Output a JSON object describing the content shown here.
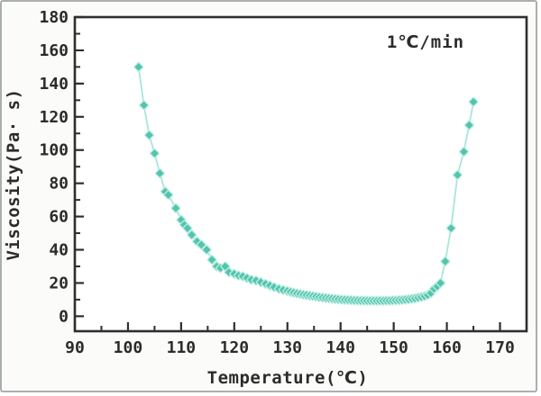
{
  "figure": {
    "colors": {
      "paper": "#fbfbf9",
      "ink": "#2b2b2b",
      "frame": "#2e2e2e",
      "marker": "#53c4ad",
      "marker_halo": "#bdeee3",
      "line": "#a9e6d9"
    }
  },
  "chart_data": {
    "type": "line",
    "title": "",
    "xlabel": "Temperature(℃)",
    "ylabel": "Viscosity(Pa· s)",
    "annotation": "1℃/min",
    "xlim": [
      90,
      175
    ],
    "ylim": [
      -9,
      180
    ],
    "xticks": [
      90,
      100,
      110,
      120,
      130,
      140,
      150,
      160,
      170
    ],
    "yticks": [
      0,
      20,
      40,
      60,
      80,
      100,
      120,
      140,
      160,
      180
    ],
    "x_minor_ticks": [
      95,
      105,
      115,
      125,
      135,
      145,
      155,
      165
    ],
    "y_minor_ticks": [
      10,
      30,
      50,
      70,
      90,
      110,
      130,
      150,
      170
    ],
    "grid": false,
    "legend": "none",
    "marker_shape": "diamond",
    "series": [
      {
        "name": "viscosity-vs-temperature",
        "points": [
          [
            102,
            150
          ],
          [
            103,
            127
          ],
          [
            104,
            109
          ],
          [
            105,
            98
          ],
          [
            106,
            86
          ],
          [
            107,
            75
          ],
          [
            107.6,
            73
          ],
          [
            109,
            65
          ],
          [
            110,
            58
          ],
          [
            110.6,
            55
          ],
          [
            111.2,
            53
          ],
          [
            112,
            49
          ],
          [
            113,
            45
          ],
          [
            113.8,
            43
          ],
          [
            114.8,
            40
          ],
          [
            115.8,
            34
          ],
          [
            116.7,
            30
          ],
          [
            117.4,
            29
          ],
          [
            118.3,
            30
          ],
          [
            119,
            26.5
          ],
          [
            120,
            25.5
          ],
          [
            120.8,
            24.5
          ],
          [
            121.6,
            24
          ],
          [
            122.4,
            23
          ],
          [
            123.2,
            22
          ],
          [
            124.1,
            21.5
          ],
          [
            125,
            20.5
          ],
          [
            125.9,
            19.5
          ],
          [
            126.7,
            18.5
          ],
          [
            127.5,
            17.5
          ],
          [
            128.4,
            16.5
          ],
          [
            129.2,
            15.8
          ],
          [
            130,
            15.2
          ],
          [
            130.6,
            14.6
          ],
          [
            131.2,
            14.2
          ],
          [
            131.8,
            13.8
          ],
          [
            132.4,
            13.4
          ],
          [
            133,
            13
          ],
          [
            133.6,
            12.7
          ],
          [
            134.2,
            12.4
          ],
          [
            134.8,
            12.1
          ],
          [
            135.4,
            11.8
          ],
          [
            136,
            11.5
          ],
          [
            136.6,
            11.2
          ],
          [
            137.2,
            11
          ],
          [
            137.8,
            10.8
          ],
          [
            138.4,
            10.6
          ],
          [
            139,
            10.4
          ],
          [
            139.6,
            10.2
          ],
          [
            140.2,
            10
          ],
          [
            140.8,
            9.9
          ],
          [
            141.4,
            9.8
          ],
          [
            142,
            9.7
          ],
          [
            142.6,
            9.6
          ],
          [
            143.2,
            9.5
          ],
          [
            143.8,
            9.4
          ],
          [
            144.4,
            9.4
          ],
          [
            145,
            9.3
          ],
          [
            145.6,
            9.3
          ],
          [
            146.2,
            9.3
          ],
          [
            146.8,
            9.3
          ],
          [
            147.4,
            9.3
          ],
          [
            148,
            9.3
          ],
          [
            148.6,
            9.4
          ],
          [
            149.2,
            9.4
          ],
          [
            149.8,
            9.5
          ],
          [
            150.4,
            9.6
          ],
          [
            151,
            9.7
          ],
          [
            151.6,
            9.8
          ],
          [
            152.2,
            10
          ],
          [
            152.8,
            10.2
          ],
          [
            153.4,
            10.5
          ],
          [
            154,
            10.8
          ],
          [
            154.6,
            11.2
          ],
          [
            155.2,
            11.6
          ],
          [
            155.8,
            12.1
          ],
          [
            156.4,
            12.8
          ],
          [
            157,
            14
          ],
          [
            157.6,
            16.5
          ],
          [
            158.2,
            18
          ],
          [
            158.8,
            20
          ],
          [
            159.7,
            33
          ],
          [
            160.8,
            53
          ],
          [
            162,
            85
          ],
          [
            163.2,
            99
          ],
          [
            164.2,
            115
          ],
          [
            165,
            129
          ]
        ]
      }
    ]
  }
}
